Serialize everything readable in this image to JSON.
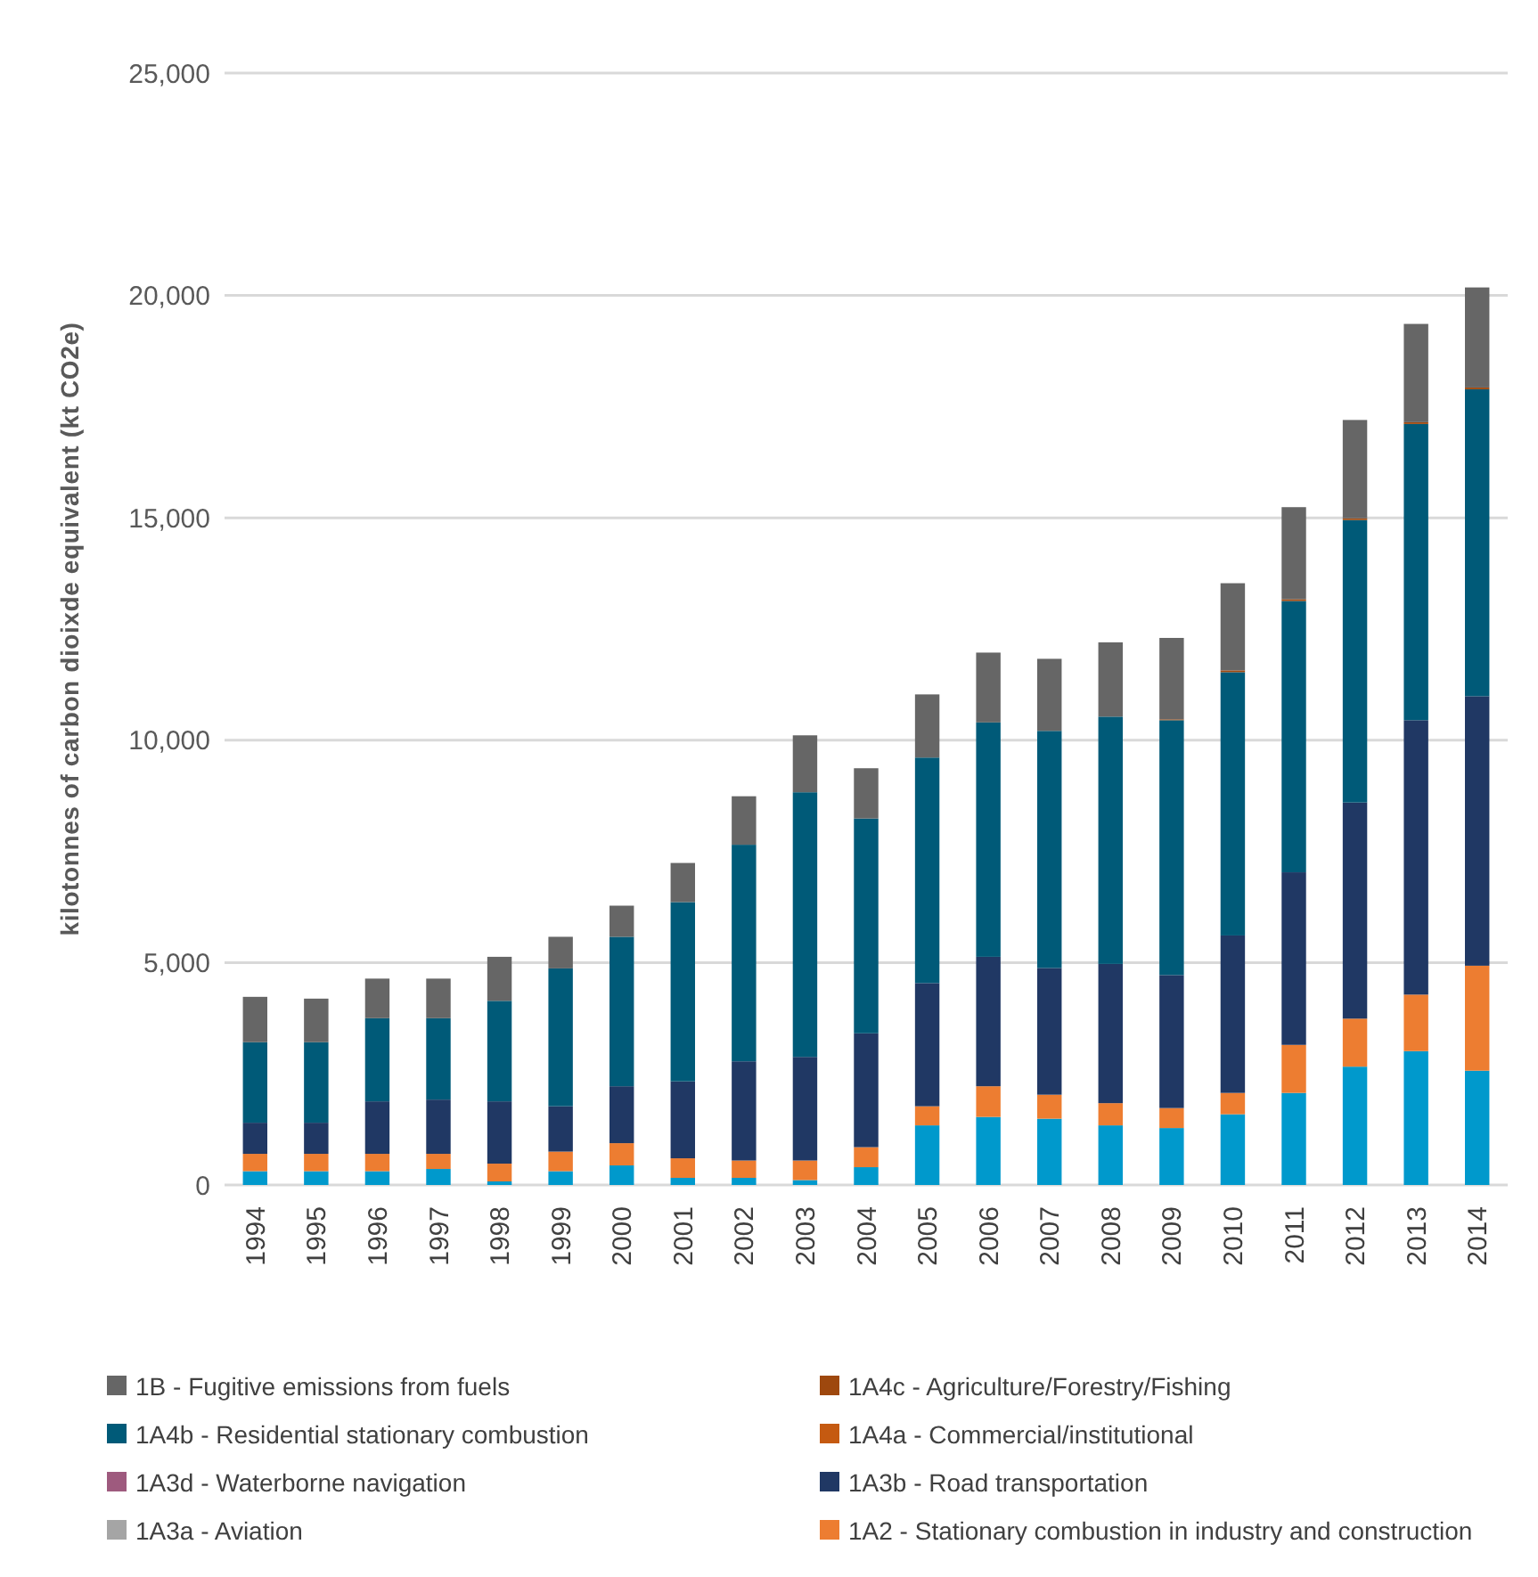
{
  "chart_data": {
    "type": "bar",
    "stacked": true,
    "ylabel": "kilotonnes of carbon dioixde equivalent  (kt CO2e)",
    "categories": [
      "1994",
      "1995",
      "1996",
      "1997",
      "1998",
      "1999",
      "2000",
      "2001",
      "2002",
      "2003",
      "2004",
      "2005",
      "2006",
      "2007",
      "2008",
      "2009",
      "2010",
      "2011",
      "2012",
      "2013",
      "2014"
    ],
    "ylim": [
      0,
      25000
    ],
    "yticks": [
      0,
      {
        "value": 5000,
        "label": "5,000"
      },
      {
        "value": 10000,
        "label": "10,000"
      },
      {
        "value": 15000,
        "label": "15,000"
      },
      {
        "value": 20000,
        "label": "20,000"
      },
      {
        "value": 25000,
        "label": "25,000"
      }
    ],
    "grid": "y",
    "legend": "bottom",
    "series": [
      {
        "color": "#0099cc",
        "values": [
          310,
          310,
          310,
          360,
          80,
          310,
          440,
          160,
          160,
          110,
          400,
          1340,
          1530,
          1490,
          1340,
          1280,
          1590,
          2070,
          2660,
          3010,
          2570
        ]
      },
      {
        "name": "1A2 - Stationary combustion in industry and construction",
        "color": "#ed7d31",
        "values": [
          390,
          390,
          390,
          340,
          400,
          440,
          500,
          440,
          390,
          440,
          450,
          430,
          690,
          540,
          500,
          450,
          480,
          1080,
          1080,
          1270,
          2360
        ]
      },
      {
        "name": "1A3a - Aviation",
        "color": "#a5a5a5",
        "values": [
          0,
          0,
          0,
          0,
          0,
          0,
          0,
          0,
          0,
          0,
          0,
          0,
          0,
          0,
          0,
          0,
          0,
          0,
          0,
          0,
          0
        ]
      },
      {
        "name": "1A3b - Road transportation",
        "color": "#203864",
        "values": [
          700,
          700,
          1180,
          1220,
          1400,
          1020,
          1280,
          1730,
          2230,
          2330,
          2560,
          2770,
          2910,
          2850,
          3130,
          2990,
          3540,
          3880,
          4860,
          6170,
          6060
        ]
      },
      {
        "name": "1A3d - Waterborne navigation",
        "color": "#9e5a7e",
        "values": [
          0,
          0,
          0,
          0,
          0,
          0,
          0,
          0,
          0,
          0,
          0,
          0,
          0,
          0,
          0,
          0,
          0,
          0,
          0,
          0,
          0
        ]
      },
      {
        "name": "1A4a - Commercial/institutional",
        "color": "#c55a11",
        "values": [
          0,
          0,
          0,
          0,
          0,
          0,
          0,
          0,
          0,
          0,
          0,
          0,
          0,
          0,
          0,
          0,
          0,
          0,
          0,
          0,
          0
        ]
      },
      {
        "name": "1A4b - Residential stationary combustion",
        "color": "#005a78",
        "values": [
          1810,
          1810,
          1870,
          1830,
          2260,
          3100,
          3360,
          4030,
          4870,
          5950,
          4830,
          5070,
          5270,
          5330,
          5560,
          5730,
          5920,
          6100,
          6350,
          6660,
          6900
        ]
      },
      {
        "name": "1A4c - Agriculture/Forestry/Fishing",
        "color": "#9e480e",
        "values": [
          0,
          0,
          0,
          0,
          0,
          0,
          0,
          0,
          0,
          0,
          0,
          0,
          0,
          0,
          0,
          20,
          40,
          40,
          40,
          40,
          40
        ]
      },
      {
        "name": "1B - Fugitive emissions from fuels",
        "color": "#666666",
        "values": [
          1020,
          980,
          890,
          890,
          990,
          710,
          700,
          880,
          1090,
          1280,
          1130,
          1420,
          1570,
          1620,
          1670,
          1830,
          1960,
          2070,
          2210,
          2210,
          2250
        ]
      }
    ]
  }
}
